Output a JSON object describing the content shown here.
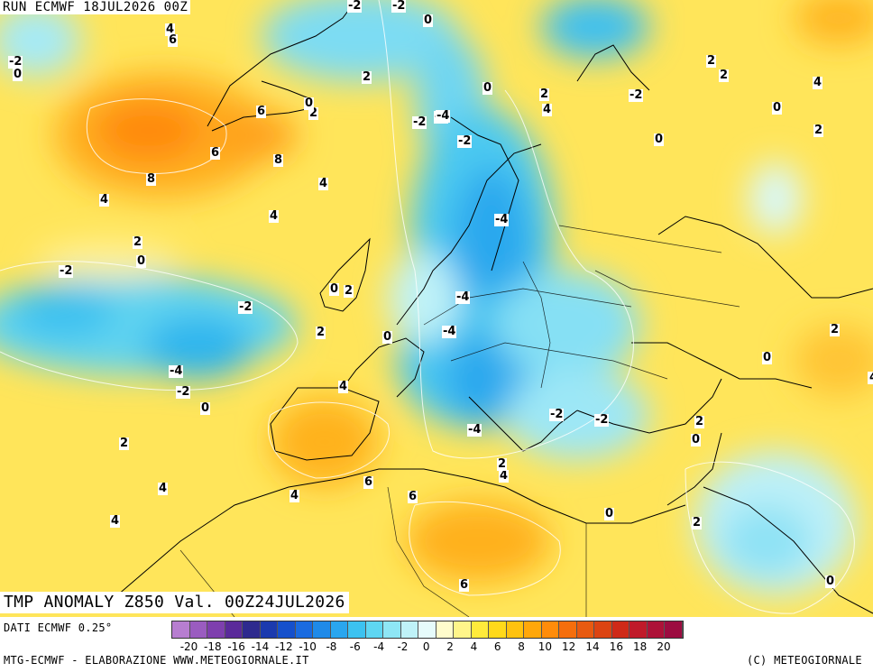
{
  "header": {
    "run_label": "RUN ECMWF 18JUL2026 00Z"
  },
  "map": {
    "title": "TMP ANOMALY Z850 Val. 00Z24JUL2026",
    "contour_labels": [
      "-2",
      "4",
      "6",
      "-2",
      "0",
      "-2",
      "-4",
      "0",
      "2",
      "0",
      "2",
      "2",
      "-2",
      "4",
      "2",
      "4",
      "6",
      "2",
      "6",
      "8",
      "8",
      "4",
      "0",
      "-2",
      "-4",
      "-2",
      "4",
      "2",
      "4",
      "-4",
      "2",
      "0",
      "-2",
      "0",
      "2",
      "-2",
      "-4",
      "2",
      "0",
      "-4",
      "0",
      "4",
      "-4",
      "-2",
      "2",
      "0",
      "-2",
      "-4",
      "-2",
      "-2",
      "0",
      "2",
      "2",
      "0",
      "4",
      "-4",
      "2",
      "4",
      "6",
      "6",
      "4",
      "0",
      "2",
      "4",
      "0",
      "6",
      "0",
      "2",
      "4"
    ]
  },
  "footer": {
    "source_label": "DATI ECMWF 0.25°",
    "credit_left": "MTG-ECMWF - ELABORAZIONE WWW.METEOGIORNALE.IT",
    "credit_right": "(C) METEOGIORNALE",
    "colorbar_ticks": [
      "-20",
      "-18",
      "-16",
      "-14",
      "-12",
      "-10",
      "-8",
      "-6",
      "-4",
      "-2",
      "0",
      "2",
      "4",
      "6",
      "8",
      "10",
      "12",
      "14",
      "16",
      "18",
      "20"
    ],
    "colorbar_colors": [
      "#b77ed0",
      "#9a5cc0",
      "#7e3fae",
      "#5a2a9a",
      "#2e2a8e",
      "#1b3aae",
      "#1550cc",
      "#1a6be0",
      "#1f8ae8",
      "#2aa6ee",
      "#3cc2f0",
      "#5ed6f2",
      "#8ee6f5",
      "#bff2f8",
      "#e6fbfb",
      "#fffccc",
      "#fff58a",
      "#ffeb3b",
      "#ffd91a",
      "#ffc20e",
      "#ffa70a",
      "#ff8c0a",
      "#f56e0c",
      "#e85a10",
      "#dc4412",
      "#cf2a18",
      "#c01a2a",
      "#ad1238",
      "#9c0c40"
    ]
  }
}
